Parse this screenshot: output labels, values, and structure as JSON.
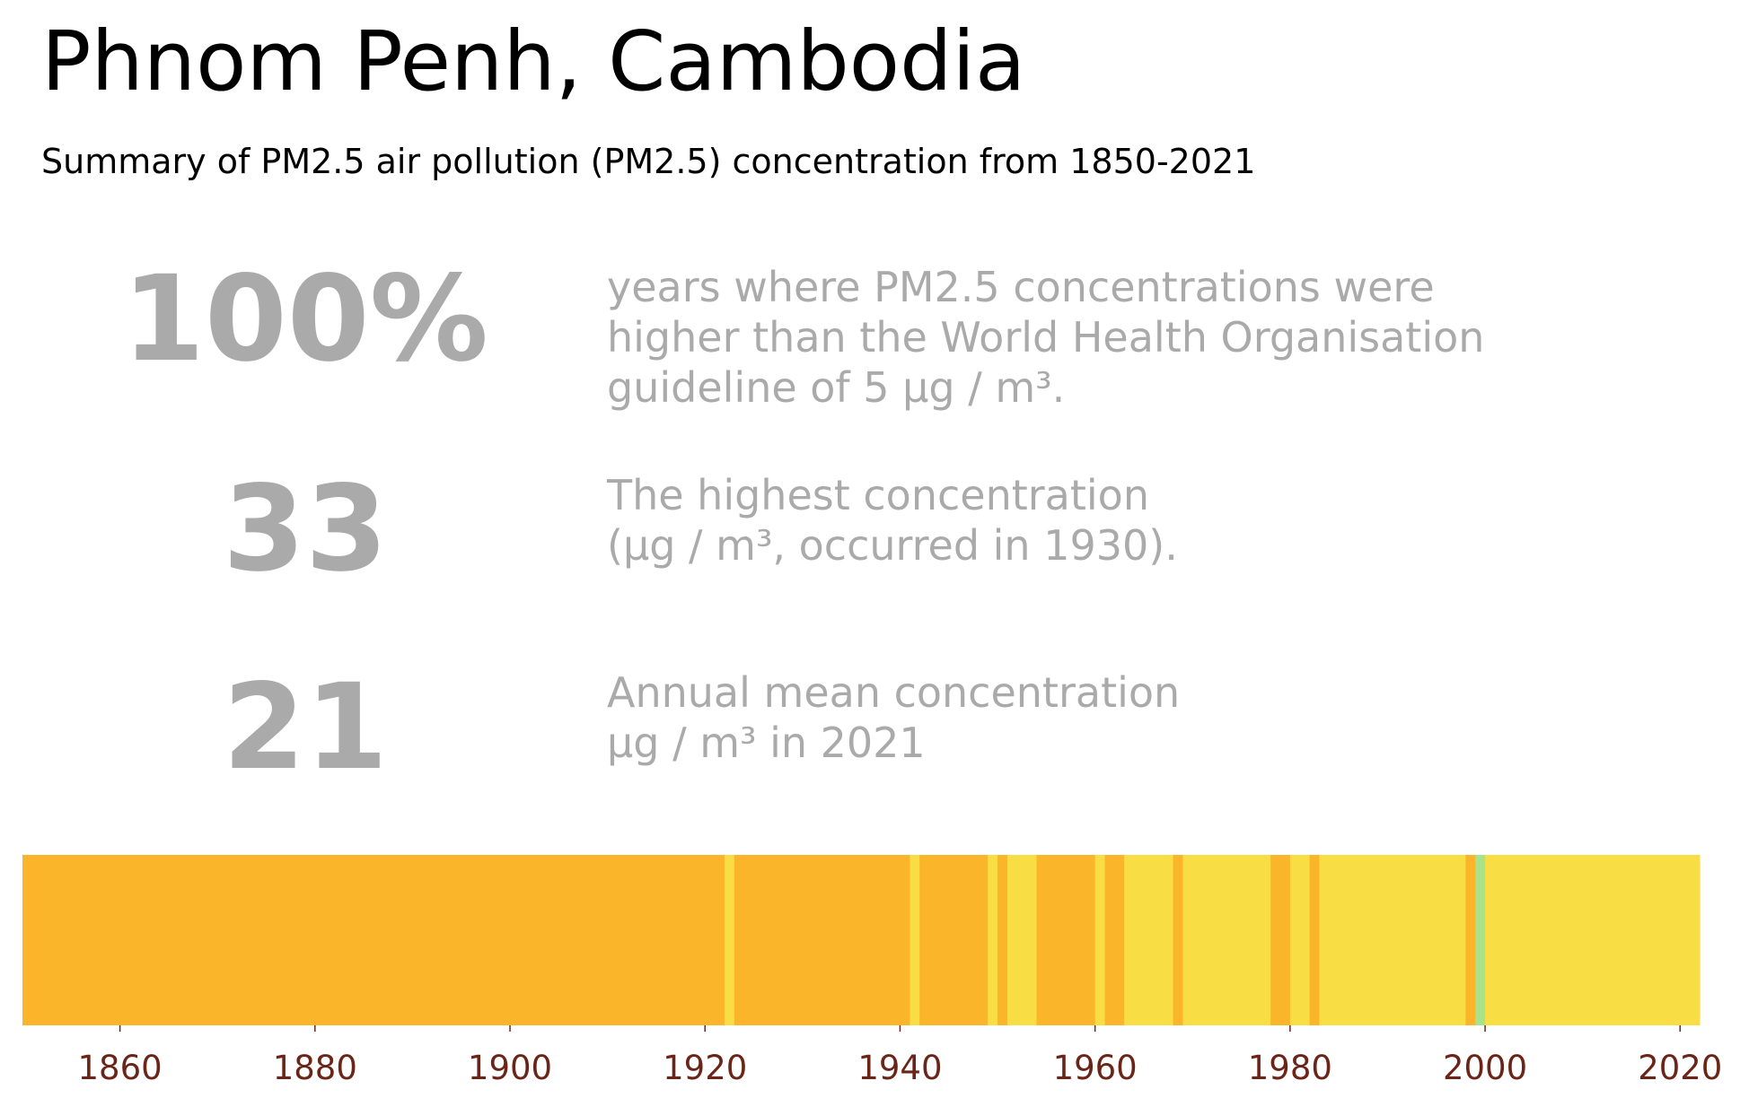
{
  "title": "Phnom Penh, Cambodia",
  "subtitle": "Summary of PM2.5 air pollution (PM2.5) concentration from 1850-2021",
  "stats": [
    {
      "value": "100%",
      "lines": [
        "years where PM2.5 concentrations were",
        "higher than the World Health Organisation",
        "guideline of 5 μg / m³."
      ]
    },
    {
      "value": "33",
      "lines": [
        "The highest concentration",
        "(μg / m³, occurred in 1930)."
      ]
    },
    {
      "value": "21",
      "lines": [
        "Annual mean concentration",
        "μg / m³ in 2021"
      ]
    }
  ],
  "colors": {
    "stat_text": "#aaaaaa",
    "tick_text": "#6b2518",
    "orange": "#fbb52a",
    "yellow": "#f8de44",
    "green": "#a8e38c"
  },
  "chart_data": {
    "type": "heatmap",
    "title": "",
    "xlabel": "",
    "ylabel": "",
    "xlim": [
      1850,
      2022
    ],
    "x_ticks": [
      1860,
      1880,
      1900,
      1920,
      1940,
      1960,
      1980,
      2000,
      2020
    ],
    "grid": false,
    "stripes": [
      {
        "start": 1850,
        "end": 1922,
        "color": "#fbb52a"
      },
      {
        "start": 1922,
        "end": 1923,
        "color": "#f8de44"
      },
      {
        "start": 1923,
        "end": 1941,
        "color": "#fbb52a"
      },
      {
        "start": 1941,
        "end": 1942,
        "color": "#f8de44"
      },
      {
        "start": 1942,
        "end": 1949,
        "color": "#fbb52a"
      },
      {
        "start": 1949,
        "end": 1950,
        "color": "#f8de44"
      },
      {
        "start": 1950,
        "end": 1951,
        "color": "#fbb52a"
      },
      {
        "start": 1951,
        "end": 1954,
        "color": "#f8de44"
      },
      {
        "start": 1954,
        "end": 1960,
        "color": "#fbb52a"
      },
      {
        "start": 1960,
        "end": 1961,
        "color": "#f8de44"
      },
      {
        "start": 1961,
        "end": 1963,
        "color": "#fbb52a"
      },
      {
        "start": 1963,
        "end": 1968,
        "color": "#f8de44"
      },
      {
        "start": 1968,
        "end": 1969,
        "color": "#fbb52a"
      },
      {
        "start": 1969,
        "end": 1978,
        "color": "#f8de44"
      },
      {
        "start": 1978,
        "end": 1980,
        "color": "#fbb52a"
      },
      {
        "start": 1980,
        "end": 1982,
        "color": "#f8de44"
      },
      {
        "start": 1982,
        "end": 1983,
        "color": "#fbb52a"
      },
      {
        "start": 1983,
        "end": 1998,
        "color": "#f8de44"
      },
      {
        "start": 1998,
        "end": 1999,
        "color": "#fbb52a"
      },
      {
        "start": 1999,
        "end": 2000,
        "color": "#a8e38c"
      },
      {
        "start": 2000,
        "end": 2022,
        "color": "#f8de44"
      }
    ]
  }
}
